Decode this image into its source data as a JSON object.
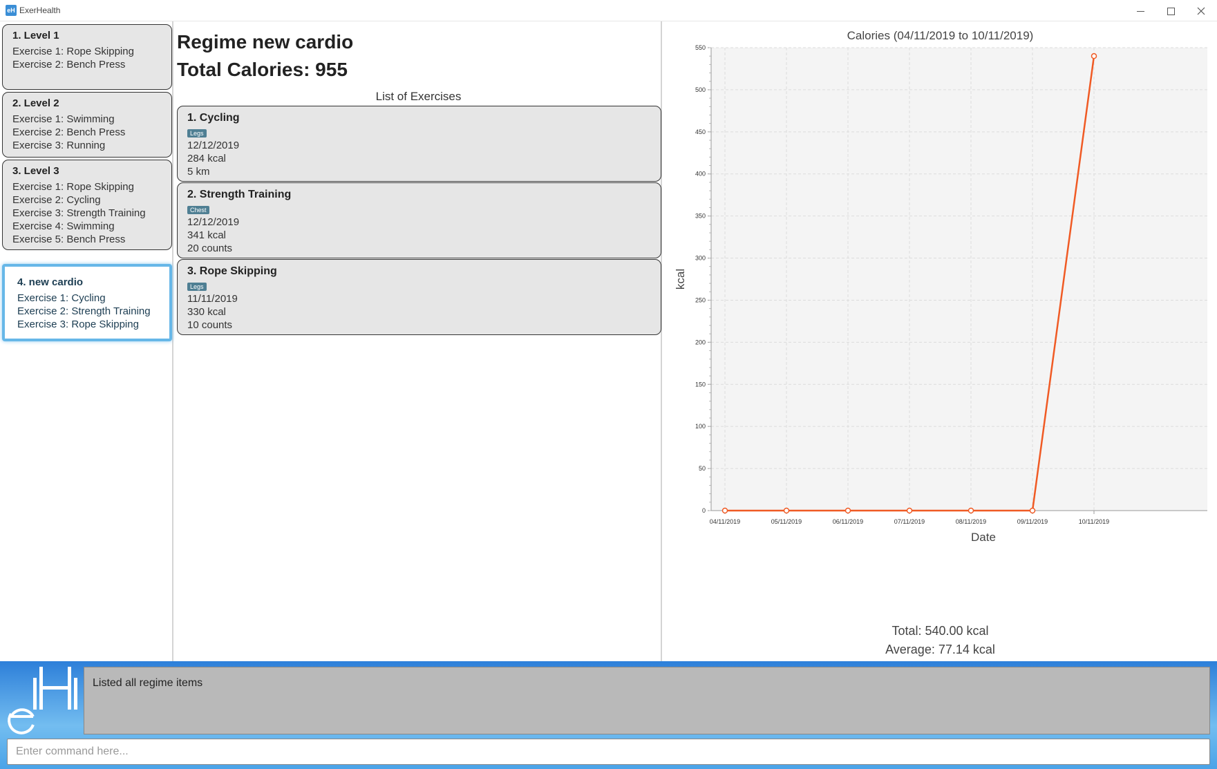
{
  "window": {
    "title": "ExerHealth",
    "icon": "exerhealth-app-icon"
  },
  "regimes": [
    {
      "title": "1.  Level 1",
      "exercises": [
        "Exercise 1: Rope Skipping",
        "Exercise 2: Bench Press"
      ]
    },
    {
      "title": "2.  Level 2",
      "exercises": [
        "Exercise 1: Swimming",
        "Exercise 2: Bench Press",
        "Exercise 3: Running"
      ]
    },
    {
      "title": "3.  Level 3",
      "exercises": [
        "Exercise 1: Rope Skipping",
        "Exercise 2: Cycling",
        "Exercise 3: Strength Training",
        "Exercise 4: Swimming",
        "Exercise 5: Bench Press"
      ]
    },
    {
      "title": "4.  new cardio",
      "exercises": [
        "Exercise 1: Cycling",
        "Exercise 2: Strength Training",
        "Exercise 3: Rope Skipping"
      ],
      "selected": true
    }
  ],
  "detail": {
    "regime_name": "Regime new cardio",
    "total_calories": "Total Calories: 955",
    "list_header": "List of Exercises",
    "exercises": [
      {
        "title": "1.  Cycling",
        "tag": "Legs",
        "date": "12/12/2019",
        "calories": "284 kcal",
        "quantity": "5 km"
      },
      {
        "title": "2.  Strength Training",
        "tag": "Chest",
        "date": "12/12/2019",
        "calories": "341 kcal",
        "quantity": "20 counts"
      },
      {
        "title": "3.  Rope Skipping",
        "tag": "Legs",
        "date": "11/11/2019",
        "calories": "330 kcal",
        "quantity": "10 counts"
      }
    ]
  },
  "chart_data": {
    "type": "line",
    "title": "Calories (04/11/2019 to 10/11/2019)",
    "xlabel": "Date",
    "ylabel": "kcal",
    "categories": [
      "04/11/2019",
      "05/11/2019",
      "06/11/2019",
      "07/11/2019",
      "08/11/2019",
      "09/11/2019",
      "10/11/2019"
    ],
    "values": [
      0,
      0,
      0,
      0,
      0,
      0,
      540
    ],
    "ylim": [
      0,
      550
    ],
    "yticks": [
      0,
      50,
      100,
      150,
      200,
      250,
      300,
      350,
      400,
      450,
      500,
      550
    ],
    "grid": true,
    "line_color": "#f05a24",
    "total": "Total: 540.00 kcal",
    "average": "Average: 77.14 kcal"
  },
  "result_display": {
    "text": "Listed all regime items"
  },
  "command_box": {
    "value": "",
    "placeholder": "Enter command here..."
  },
  "colors": {
    "accent": "#66b7e8",
    "tag_bg": "#4f7f93",
    "bottom_bar": "#2d7fd9"
  }
}
